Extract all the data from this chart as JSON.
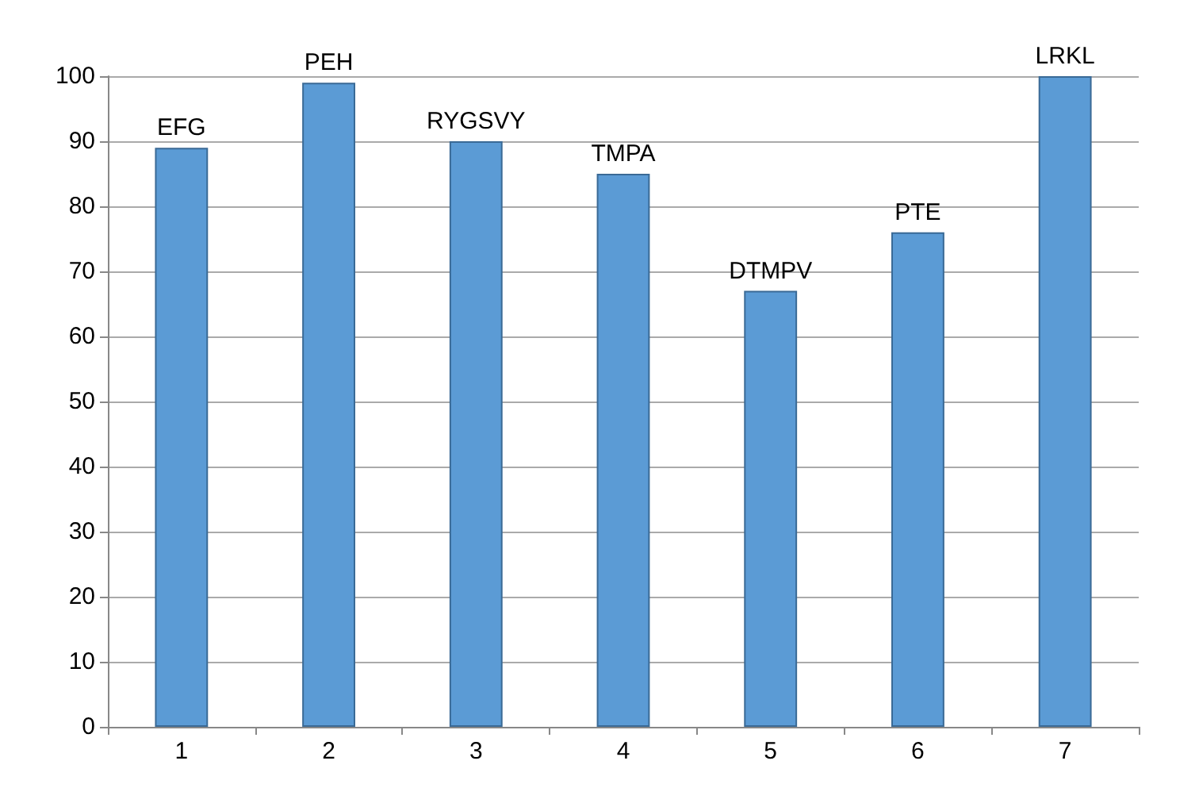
{
  "chart_data": {
    "type": "bar",
    "categories": [
      "1",
      "2",
      "3",
      "4",
      "5",
      "6",
      "7"
    ],
    "values": [
      89,
      99,
      90,
      85,
      67,
      76,
      100
    ],
    "value_labels": [
      "EFG",
      "PEH",
      "RYGSVY",
      "TMPA",
      "DTMPV",
      "PTE",
      "LRKL"
    ],
    "color": "#5b9bd5",
    "ylim": [
      0,
      100
    ],
    "yticks": [
      0,
      10,
      20,
      30,
      40,
      50,
      60,
      70,
      80,
      90,
      100
    ],
    "grid": "y"
  }
}
